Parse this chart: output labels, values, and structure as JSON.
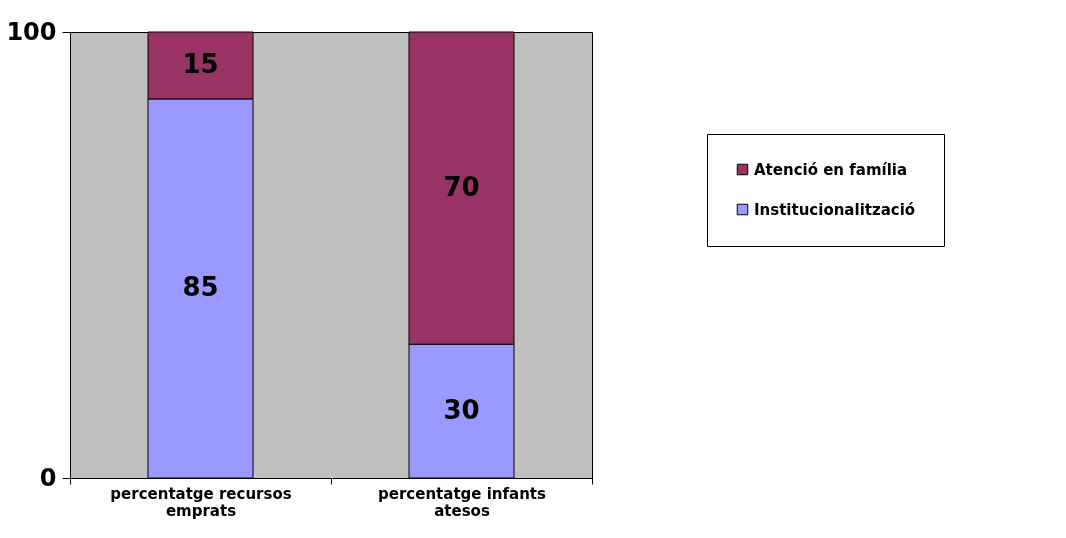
{
  "chart_data": {
    "type": "bar",
    "stacked": true,
    "categories": [
      "percentatge recursos emprats",
      "percentatge infants atesos"
    ],
    "series": [
      {
        "name": "Institucionalització",
        "color": "#9999ff",
        "values": [
          85,
          30
        ]
      },
      {
        "name": "Atenció en família",
        "color": "#993366",
        "values": [
          15,
          70
        ]
      }
    ],
    "ylim": [
      0,
      100
    ],
    "yticks": [
      0,
      100
    ],
    "grid": false,
    "legend": "right",
    "data_labels": true
  }
}
